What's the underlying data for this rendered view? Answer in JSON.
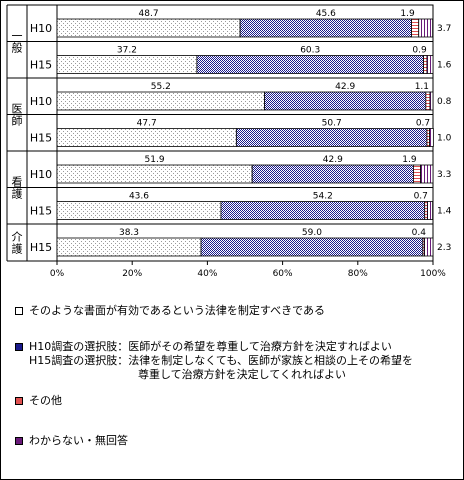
{
  "chart_data": {
    "type": "bar",
    "stacked": true,
    "orientation": "horizontal",
    "groups": [
      {
        "label": "一般",
        "rows": [
          "H10",
          "H15"
        ]
      },
      {
        "label": "医師",
        "rows": [
          "H10",
          "H15"
        ]
      },
      {
        "label": "看護",
        "rows": [
          "H10",
          "H15"
        ]
      },
      {
        "label": "介護",
        "rows": [
          "H15"
        ]
      }
    ],
    "categories": [
      "H10",
      "H15",
      "H10",
      "H15",
      "H10",
      "H15",
      "H15"
    ],
    "series": [
      {
        "name": "そのような書面が有効であるという法律を制定すべきである",
        "values": [
          48.7,
          37.2,
          55.2,
          47.7,
          51.9,
          43.6,
          38.3
        ]
      },
      {
        "name": "H10調査の選択肢：医師がその希望を尊重して治療方針を決定すればよい H15調査の選択肢：法律を制定しなくても、医師が家族と相談の上その希望を尊重して治療方針を決定してくれればよい",
        "values": [
          45.6,
          60.3,
          42.9,
          50.7,
          42.9,
          54.2,
          59.0
        ]
      },
      {
        "name": "その他",
        "values": [
          1.9,
          0.9,
          1.1,
          0.7,
          1.9,
          0.7,
          0.4
        ]
      },
      {
        "name": "わからない・無回答",
        "values": [
          3.7,
          1.6,
          0.8,
          1.0,
          3.3,
          1.4,
          2.3
        ]
      }
    ],
    "labels": [
      [
        "48.7",
        "45.6",
        "1.9",
        "3.7"
      ],
      [
        "37.2",
        "60.3",
        "0.9",
        "1.6"
      ],
      [
        "55.2",
        "42.9",
        "1.1",
        "0.8"
      ],
      [
        "47.7",
        "50.7",
        "0.7",
        "1.0"
      ],
      [
        "51.9",
        "42.9",
        "1.9",
        "3.3"
      ],
      [
        "43.6",
        "54.2",
        "0.7",
        "1.4"
      ],
      [
        "38.3",
        "59.0",
        "0.4",
        "2.3"
      ]
    ],
    "xticks": [
      "0%",
      "20%",
      "40%",
      "60%",
      "80%",
      "100%"
    ],
    "xlim": [
      0,
      100
    ],
    "colors": [
      "#ffffff",
      "#1a1a8c",
      "#e05050",
      "#6a1a7a"
    ],
    "legend_position": "bottom"
  },
  "legend": {
    "item1": "そのような書面が有効であるという法律を制定すべきである",
    "item2_line1": "H10調査の選択肢：医師がその希望を尊重して治療方針を決定すればよい",
    "item2_line2": "H15調査の選択肢：法律を制定しなくても、医師が家族と相談の上その希望を",
    "item2_line3": "尊重して治療方針を決定してくれればよい",
    "item3": "その他",
    "item4": "わからない・無回答"
  }
}
